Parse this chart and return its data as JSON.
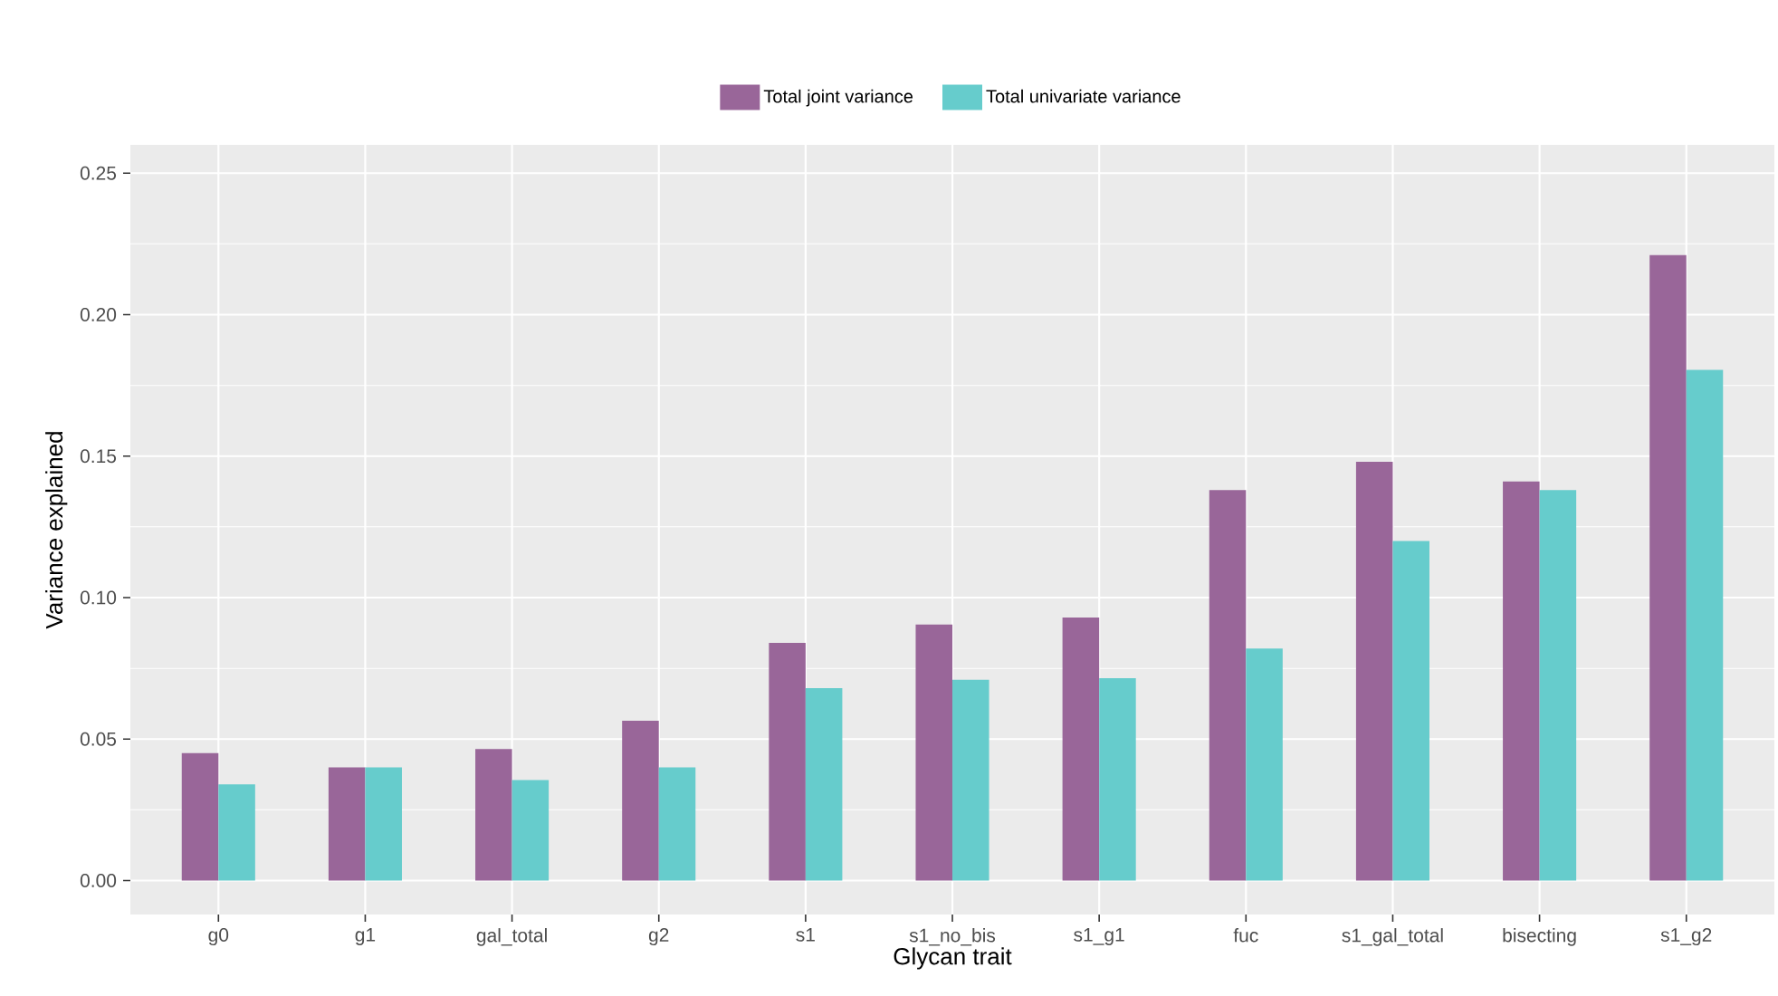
{
  "chart_data": {
    "type": "bar",
    "xlabel": "Glycan trait",
    "ylabel": "Variance explained",
    "categories": [
      "g0",
      "g1",
      "gal_total",
      "g2",
      "s1",
      "s1_no_bis",
      "s1_g1",
      "fuc",
      "s1_gal_total",
      "bisecting",
      "s1_g2"
    ],
    "series": [
      {
        "name": "Total joint variance",
        "color": "#996699",
        "values": [
          0.045,
          0.04,
          0.0465,
          0.0565,
          0.084,
          0.0905,
          0.093,
          0.138,
          0.148,
          0.141,
          0.221
        ]
      },
      {
        "name": "Total univariate variance",
        "color": "#66cccc",
        "values": [
          0.034,
          0.04,
          0.0355,
          0.04,
          0.068,
          0.071,
          0.0715,
          0.082,
          0.12,
          0.138,
          0.1805
        ]
      }
    ],
    "ylim": [
      -0.012,
      0.26
    ],
    "yticks": [
      {
        "value": 0,
        "label": "0.00"
      },
      {
        "value": 0.05,
        "label": "0.05"
      },
      {
        "value": 0.1,
        "label": "0.10"
      },
      {
        "value": 0.15,
        "label": "0.15"
      },
      {
        "value": 0.2,
        "label": "0.20"
      },
      {
        "value": 0.25,
        "label": "0.25"
      }
    ],
    "grid": true,
    "legend": "top"
  }
}
